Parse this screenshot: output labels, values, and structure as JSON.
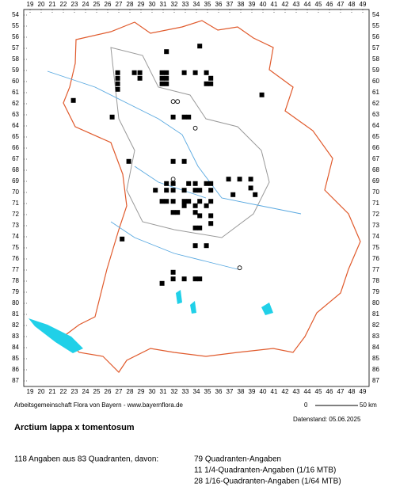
{
  "map": {
    "columns": [
      19,
      20,
      21,
      22,
      23,
      24,
      25,
      26,
      27,
      28,
      29,
      30,
      31,
      32,
      33,
      34,
      35,
      36,
      37,
      38,
      39,
      40,
      41,
      42,
      43,
      44,
      45,
      46,
      47,
      48,
      49
    ],
    "rows": [
      54,
      55,
      56,
      57,
      58,
      59,
      60,
      61,
      62,
      63,
      64,
      65,
      66,
      67,
      68,
      69,
      70,
      71,
      72,
      73,
      74,
      75,
      76,
      77,
      78,
      79,
      80,
      81,
      82,
      83,
      84,
      85,
      86,
      87
    ],
    "squares": [
      [
        34.3,
        56.8
      ],
      [
        31.3,
        57.3
      ],
      [
        26.9,
        59.2
      ],
      [
        26.9,
        59.7
      ],
      [
        26.9,
        60.2
      ],
      [
        26.9,
        60.7
      ],
      [
        28.4,
        59.2
      ],
      [
        28.9,
        59.2
      ],
      [
        28.9,
        59.7
      ],
      [
        30.9,
        59.2
      ],
      [
        31.3,
        59.2
      ],
      [
        30.9,
        59.7
      ],
      [
        31.3,
        59.7
      ],
      [
        30.9,
        60.2
      ],
      [
        31.3,
        60.2
      ],
      [
        32.9,
        59.2
      ],
      [
        33.9,
        59.2
      ],
      [
        34.9,
        59.2
      ],
      [
        35.3,
        59.7
      ],
      [
        34.9,
        60.2
      ],
      [
        35.3,
        60.2
      ],
      [
        39.9,
        61.2
      ],
      [
        22.9,
        61.7
      ],
      [
        26.4,
        63.2
      ],
      [
        31.9,
        63.2
      ],
      [
        32.9,
        63.2
      ],
      [
        33.3,
        63.2
      ],
      [
        27.9,
        67.2
      ],
      [
        31.9,
        67.2
      ],
      [
        32.9,
        67.2
      ],
      [
        31.3,
        69.2
      ],
      [
        31.9,
        69.2
      ],
      [
        33.3,
        69.2
      ],
      [
        33.9,
        69.2
      ],
      [
        34.9,
        69.2
      ],
      [
        35.3,
        69.2
      ],
      [
        36.9,
        68.8
      ],
      [
        37.9,
        68.8
      ],
      [
        38.9,
        68.8
      ],
      [
        38.9,
        69.6
      ],
      [
        30.3,
        69.8
      ],
      [
        31.3,
        69.8
      ],
      [
        31.9,
        69.8
      ],
      [
        32.9,
        69.8
      ],
      [
        33.9,
        69.8
      ],
      [
        34.3,
        69.8
      ],
      [
        35.3,
        69.8
      ],
      [
        37.3,
        70.2
      ],
      [
        39.3,
        70.2
      ],
      [
        30.9,
        70.8
      ],
      [
        31.3,
        70.8
      ],
      [
        31.9,
        70.8
      ],
      [
        32.9,
        70.8
      ],
      [
        33.3,
        70.8
      ],
      [
        34.3,
        70.8
      ],
      [
        35.3,
        70.8
      ],
      [
        32.9,
        71.2
      ],
      [
        33.9,
        71.2
      ],
      [
        34.9,
        71.2
      ],
      [
        31.9,
        71.8
      ],
      [
        32.3,
        71.8
      ],
      [
        33.9,
        71.8
      ],
      [
        34.3,
        72.1
      ],
      [
        35.3,
        72.1
      ],
      [
        34.3,
        73.2
      ],
      [
        33.9,
        73.2
      ],
      [
        35.3,
        72.8
      ],
      [
        27.3,
        74.2
      ],
      [
        33.9,
        74.8
      ],
      [
        34.9,
        74.8
      ],
      [
        31.9,
        77.2
      ],
      [
        31.9,
        77.8
      ],
      [
        32.9,
        77.8
      ],
      [
        33.9,
        77.8
      ],
      [
        34.3,
        77.8
      ],
      [
        30.9,
        78.2
      ]
    ],
    "circles": [
      [
        31.9,
        61.8
      ],
      [
        32.3,
        61.8
      ],
      [
        33.9,
        64.2
      ],
      [
        31.9,
        68.8
      ],
      [
        37.9,
        76.8
      ]
    ]
  },
  "credit": "Arbeitsgemeinschaft Flora von Bayern - www.bayernflora.de",
  "scale": {
    "start": "0",
    "end": "50 km"
  },
  "date": "Datenstand: 05.06.2025",
  "title": "Arctium lappa x tomentosum",
  "summary": "118 Angaben aus 83 Quadranten, davon:",
  "details": [
    "79 Quadranten-Angaben",
    "11 1/4-Quadranten-Angaben (1/16 MTB)",
    "28 1/16-Quadranten-Angaben (1/64 MTB)"
  ]
}
